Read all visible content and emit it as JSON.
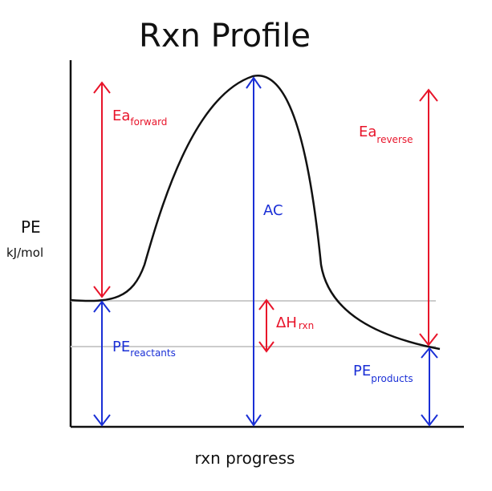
{
  "title": "Rxn Profile",
  "y_axis": {
    "label_line1": "PE",
    "label_line2": "kJ/mol"
  },
  "x_axis": {
    "label": "rxn progress"
  },
  "annotations": {
    "ea_forward": {
      "main": "Ea",
      "sub": "forward"
    },
    "ea_reverse": {
      "main": "Ea",
      "sub": "reverse"
    },
    "ac": {
      "main": "AC"
    },
    "delta_h": {
      "main": "ΔH",
      "sub": "rxn"
    },
    "pe_reactants": {
      "main": "PE",
      "sub": "reactants"
    },
    "pe_products": {
      "main": "PE",
      "sub": "products"
    }
  },
  "colors": {
    "curve": "#111111",
    "axes": "#111111",
    "red": "#e8142a",
    "blue": "#1a2fd6",
    "guides": "#cccccc"
  }
}
